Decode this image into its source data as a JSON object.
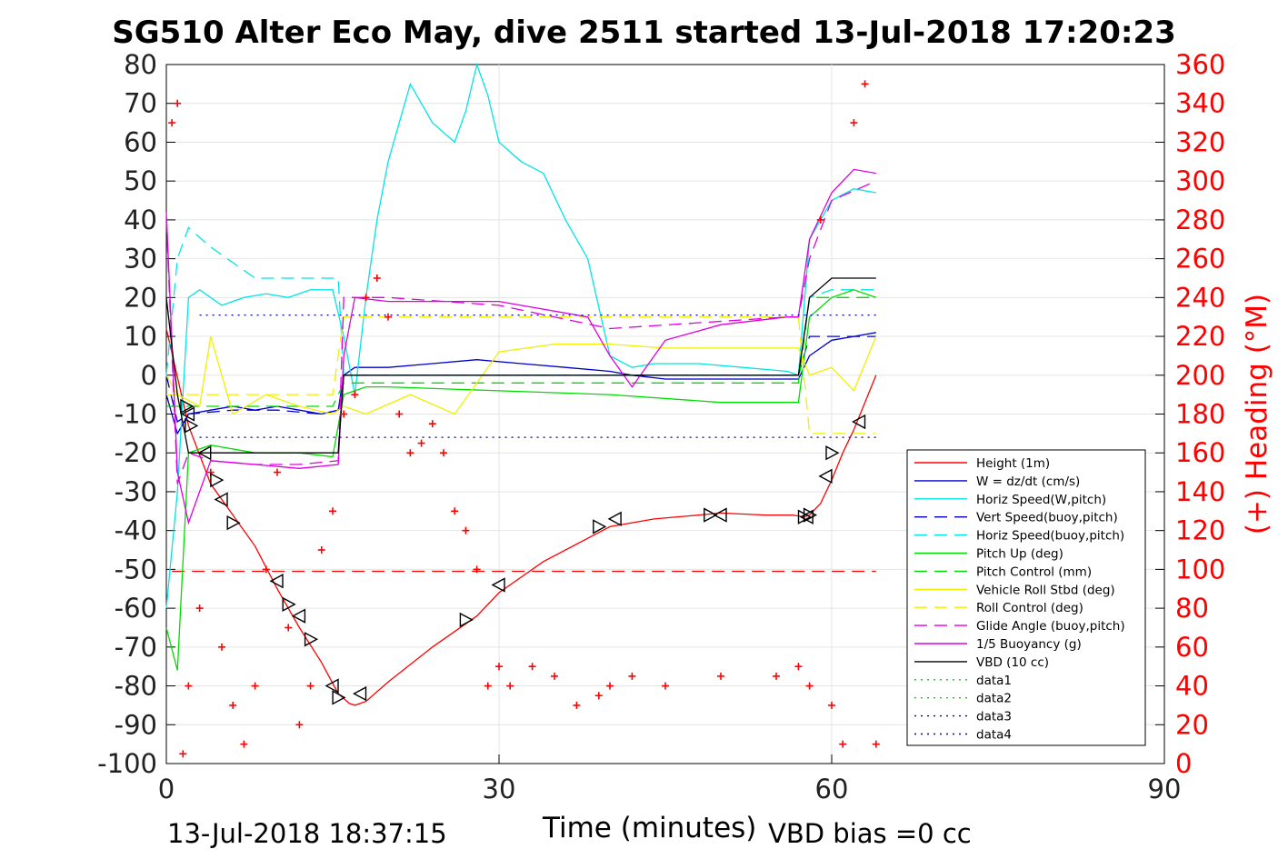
{
  "title": "SG510 Alter Eco May, dive 2511 started 13-Jul-2018 17:20:23",
  "footer": {
    "timestamp": "13-Jul-2018 18:37:15",
    "vbd_bias": "VBD bias =0 cc"
  },
  "chart_data": {
    "type": "line",
    "xlabel": "Time (minutes)",
    "ylabel_right": "(+) Heading (°M)",
    "xlim": [
      0,
      90
    ],
    "ylim_left": [
      -100,
      80
    ],
    "ylim_right": [
      0,
      360
    ],
    "xticks": [
      "0",
      "30",
      "60",
      "90"
    ],
    "yticks_left": [
      "80",
      "70",
      "60",
      "50",
      "40",
      "30",
      "20",
      "10",
      "0",
      "-10",
      "-20",
      "-30",
      "-40",
      "-50",
      "-60",
      "-70",
      "-80",
      "-90",
      "-100"
    ],
    "yticks_right": [
      "360",
      "340",
      "320",
      "300",
      "280",
      "260",
      "240",
      "220",
      "200",
      "180",
      "160",
      "140",
      "120",
      "100",
      "80",
      "60",
      "40",
      "20",
      "0"
    ],
    "grid": true,
    "legend_position": "lower-right",
    "legend": [
      {
        "label": "Height (1m)",
        "color": "#ff0000",
        "style": "solid"
      },
      {
        "label": "W = dz/dt (cm/s)",
        "color": "#0000cc",
        "style": "solid"
      },
      {
        "label": "Horiz Speed(W,pitch)",
        "color": "#00e5e5",
        "style": "solid"
      },
      {
        "label": "Vert Speed(buoy,pitch)",
        "color": "#0000cc",
        "style": "dashed"
      },
      {
        "label": "Horiz Speed(buoy,pitch)",
        "color": "#00e5e5",
        "style": "dashed"
      },
      {
        "label": "Pitch Up (deg)",
        "color": "#00dd00",
        "style": "solid"
      },
      {
        "label": "Pitch Control (mm)",
        "color": "#00dd00",
        "style": "dashed"
      },
      {
        "label": "Vehicle Roll Stbd (deg)",
        "color": "#f0f000",
        "style": "solid"
      },
      {
        "label": "Roll Control (deg)",
        "color": "#f0f000",
        "style": "dashed"
      },
      {
        "label": "Glide Angle (buoy,pitch)",
        "color": "#e000e0",
        "style": "dashed"
      },
      {
        "label": "1/5 Buoyancy (g)",
        "color": "#e000e0",
        "style": "solid"
      },
      {
        "label": "VBD (10 cc)",
        "color": "#000000",
        "style": "solid"
      },
      {
        "label": "data1",
        "color": "#00cc00",
        "style": "dotted"
      },
      {
        "label": "data2",
        "color": "#00cc00",
        "style": "dotted"
      },
      {
        "label": "data3",
        "color": "#000080",
        "style": "dotted"
      },
      {
        "label": "data4",
        "color": "#0000cc",
        "style": "dotted"
      }
    ],
    "series": [
      {
        "name": "Height (1m)",
        "x": [
          0,
          2,
          4,
          6,
          8,
          10,
          12,
          14,
          15.5,
          16.5,
          17,
          18,
          20,
          24,
          28,
          30,
          34,
          38,
          40,
          44,
          48,
          50,
          54,
          56.5,
          57.5,
          58,
          59,
          60,
          61,
          62,
          63,
          64
        ],
        "y": [
          12,
          -13,
          -28,
          -36,
          -44,
          -55,
          -65,
          -74,
          -82,
          -84.5,
          -85,
          -84,
          -79,
          -70,
          -62,
          -56,
          -48,
          -42,
          -39,
          -37,
          -36,
          -35.5,
          -36,
          -36,
          -36.5,
          -36,
          -33,
          -27,
          -20,
          -14,
          -7,
          0
        ]
      },
      {
        "name": "W = dz/dt (cm/s)",
        "x": [
          0,
          1,
          2,
          4,
          6,
          8,
          10,
          12,
          14,
          15.5,
          16,
          17,
          20,
          24,
          28,
          32,
          36,
          40,
          42,
          45,
          50,
          55,
          57,
          58,
          60,
          62,
          64
        ],
        "y": [
          -5,
          -15,
          -10,
          -9,
          -8,
          -9,
          -8,
          -9,
          -10,
          -9,
          0,
          2,
          2,
          3,
          4,
          3,
          2,
          1,
          0,
          -1,
          -1,
          -1,
          -1,
          5,
          9,
          10,
          11
        ]
      },
      {
        "name": "Horiz Speed(W,pitch)",
        "x": [
          0,
          1,
          2,
          3,
          5,
          7,
          9,
          11,
          13,
          15,
          16,
          17,
          18,
          19,
          20,
          22,
          24,
          26,
          27,
          28,
          29,
          30,
          32,
          34,
          36,
          38,
          40,
          42,
          44,
          48,
          52,
          56,
          57,
          58,
          60,
          62,
          64
        ],
        "y": [
          -60,
          -30,
          20,
          22,
          18,
          20,
          21,
          20,
          22,
          22,
          10,
          -5,
          20,
          40,
          55,
          75,
          65,
          60,
          68,
          80,
          72,
          60,
          55,
          52,
          40,
          30,
          5,
          2,
          3,
          3,
          2,
          1,
          0,
          35,
          45,
          48,
          47
        ]
      },
      {
        "name": "Vert Speed(buoy,pitch)",
        "x": [
          0,
          1,
          2,
          6,
          10,
          14,
          15.5,
          16,
          20,
          30,
          40,
          50,
          56,
          57,
          58,
          60,
          62,
          64
        ],
        "y": [
          0,
          -12,
          -10,
          -9,
          -9,
          -10,
          -9,
          0,
          0,
          0,
          0,
          0,
          0,
          0,
          10,
          10,
          10,
          10
        ]
      },
      {
        "name": "Horiz Speed(buoy,pitch)",
        "x": [
          0,
          1,
          2,
          4,
          8,
          12,
          15.5,
          16,
          20,
          40,
          56,
          57,
          58,
          60,
          62,
          64
        ],
        "y": [
          0,
          30,
          38,
          33,
          25,
          25,
          25,
          0,
          0,
          0,
          0,
          0,
          20,
          22,
          22,
          22
        ]
      },
      {
        "name": "Pitch Up (deg)",
        "x": [
          0,
          1,
          2,
          4,
          8,
          12,
          15,
          16,
          18,
          20,
          30,
          40,
          50,
          56,
          57,
          58,
          60,
          62,
          64
        ],
        "y": [
          -65,
          -76,
          -20,
          -18,
          -20,
          -20,
          -21,
          -5,
          -3,
          -3,
          -4,
          -5,
          -7,
          -7,
          -7,
          15,
          20,
          22,
          20
        ]
      },
      {
        "name": "Pitch Control (mm)",
        "x": [
          0,
          2,
          15,
          16,
          57,
          58,
          64
        ],
        "y": [
          -8,
          -8,
          -8,
          -2,
          -2,
          20,
          20
        ]
      },
      {
        "name": "Vehicle Roll Stbd (deg)",
        "x": [
          0,
          1,
          3,
          4,
          6,
          9,
          12,
          15,
          16,
          18,
          22,
          26,
          30,
          35,
          40,
          45,
          50,
          55,
          57,
          58,
          60,
          62,
          64
        ],
        "y": [
          0,
          -5,
          -8,
          10,
          -10,
          -5,
          -8,
          -10,
          -8,
          -10,
          -5,
          -10,
          6,
          8,
          8,
          7,
          7,
          7,
          7,
          0,
          2,
          -4,
          10
        ]
      },
      {
        "name": "Roll Control (deg)",
        "x": [
          0,
          2,
          15,
          16,
          57,
          58,
          64
        ],
        "y": [
          -5,
          -5,
          -5,
          15,
          15,
          -15,
          -15
        ]
      },
      {
        "name": "Glide Angle (buoy,pitch)",
        "x": [
          0,
          1,
          2,
          4,
          8,
          12,
          15.5,
          16,
          20,
          30,
          40,
          56,
          57,
          58,
          60,
          64
        ],
        "y": [
          40,
          -28,
          -20,
          -22,
          -23,
          -23,
          -22,
          20,
          20,
          18,
          12,
          15,
          15,
          30,
          45,
          50
        ]
      },
      {
        "name": "1/5 Buoyancy (g)",
        "x": [
          0,
          1,
          2,
          4,
          8,
          12,
          15.5,
          16,
          17,
          20,
          30,
          38,
          40,
          42,
          45,
          50,
          56,
          57,
          58,
          60,
          62,
          64
        ],
        "y": [
          42,
          -25,
          -38,
          -22,
          -23,
          -24,
          -23,
          5,
          20,
          19,
          19,
          15,
          5,
          -3,
          9,
          13,
          15,
          15,
          35,
          47,
          53,
          52
        ]
      },
      {
        "name": "VBD (10 cc)",
        "x": [
          0,
          1,
          2,
          3,
          15.5,
          16,
          57,
          58,
          60,
          64
        ],
        "y": [
          20,
          -5,
          -20,
          -20,
          -20,
          0,
          0,
          20,
          25,
          25
        ]
      },
      {
        "name": "data1",
        "x": [],
        "y": []
      },
      {
        "name": "data2",
        "x": [],
        "y": []
      },
      {
        "name": "data3",
        "x": [
          3,
          64
        ],
        "y": [
          -16,
          -16
        ]
      },
      {
        "name": "data4",
        "x": [
          3,
          64
        ],
        "y": [
          15.5,
          15.5
        ]
      },
      {
        "name": "Heading",
        "axis": "right",
        "x": [
          0.5,
          1,
          1.5,
          2,
          3,
          4,
          5,
          6,
          7,
          8,
          9,
          10,
          11,
          12,
          13,
          14,
          15,
          16,
          17,
          18,
          19,
          20,
          21,
          22,
          23,
          24,
          25,
          26,
          27,
          28,
          29,
          30,
          31,
          33,
          35,
          37,
          39,
          40,
          42,
          45,
          50,
          55,
          57,
          58,
          59,
          60,
          61,
          62,
          63,
          64
        ],
        "y": [
          330,
          340,
          5,
          40,
          80,
          150,
          60,
          30,
          10,
          40,
          100,
          150,
          70,
          20,
          40,
          110,
          130,
          180,
          190,
          240,
          250,
          230,
          180,
          160,
          165,
          175,
          160,
          130,
          120,
          100,
          40,
          50,
          40,
          50,
          45,
          30,
          35,
          40,
          45,
          40,
          45,
          45,
          50,
          40,
          280,
          30,
          10,
          330,
          350,
          10
        ]
      }
    ],
    "markers": {
      "name": "Height markers (triangles)",
      "x": [
        1.8,
        2,
        2.2,
        3.5,
        4.5,
        5,
        6,
        10,
        11,
        12,
        13,
        15,
        15.5,
        17.5,
        27,
        30,
        39,
        40.5,
        49,
        50,
        57.5,
        57.8,
        58,
        59.5,
        60,
        62.5
      ],
      "y": [
        -8,
        -10,
        -13,
        -20,
        -27,
        -32,
        -38,
        -53,
        -59,
        -62,
        -68,
        -80,
        -83,
        -82,
        -63,
        -54,
        -39,
        -37,
        -36,
        -36,
        -36.5,
        -36.5,
        -36,
        -26,
        -20,
        -12
      ]
    },
    "reference_lines": [
      {
        "name": "dashed red",
        "y": -50.5,
        "x": [
          0.5,
          64
        ],
        "color": "#ff0000",
        "style": "dashed"
      }
    ]
  }
}
